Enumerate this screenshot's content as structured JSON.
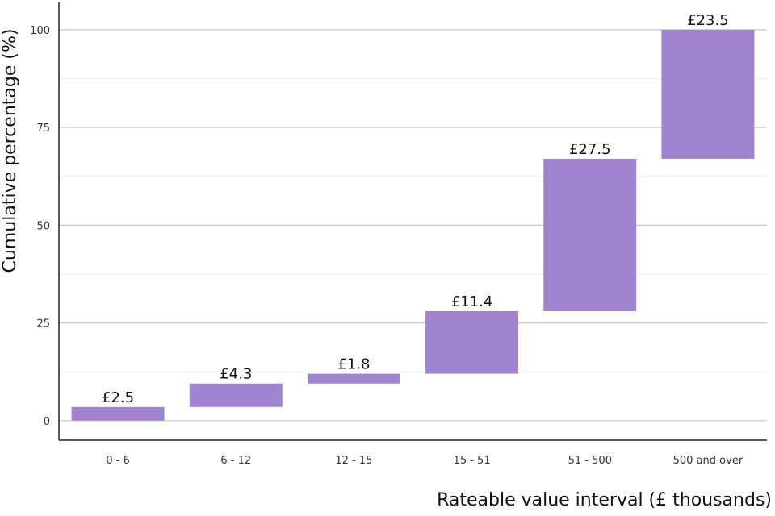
{
  "chart_data": {
    "type": "bar",
    "subtype": "floating-waterfall",
    "title": "",
    "xlabel": "Rateable value interval (£ thousands)",
    "ylabel": "Cumulative percentage (%)",
    "ylim": [
      -5,
      107
    ],
    "yticks": [
      "0",
      "25",
      "50",
      "75",
      "100"
    ],
    "grid": true,
    "legend": "none",
    "categories": [
      "0 - 6",
      "6 - 12",
      "12 - 15",
      "15 - 51",
      "51 - 500",
      "500 and over"
    ],
    "series": [
      {
        "ranges": [
          [
            0,
            3.5
          ],
          [
            3.5,
            9.5
          ],
          [
            9.5,
            12
          ],
          [
            12,
            28
          ],
          [
            28,
            67
          ],
          [
            67,
            100
          ]
        ],
        "labels": [
          "£2.5",
          "£4.3",
          "£1.8",
          "£11.4",
          "£27.5",
          "£23.5"
        ]
      }
    ],
    "colors": {
      "bar": "#A084CF",
      "major_grid": "#CCCCCC",
      "minor_grid": "#EBEBEB",
      "axis": "#222222"
    }
  }
}
